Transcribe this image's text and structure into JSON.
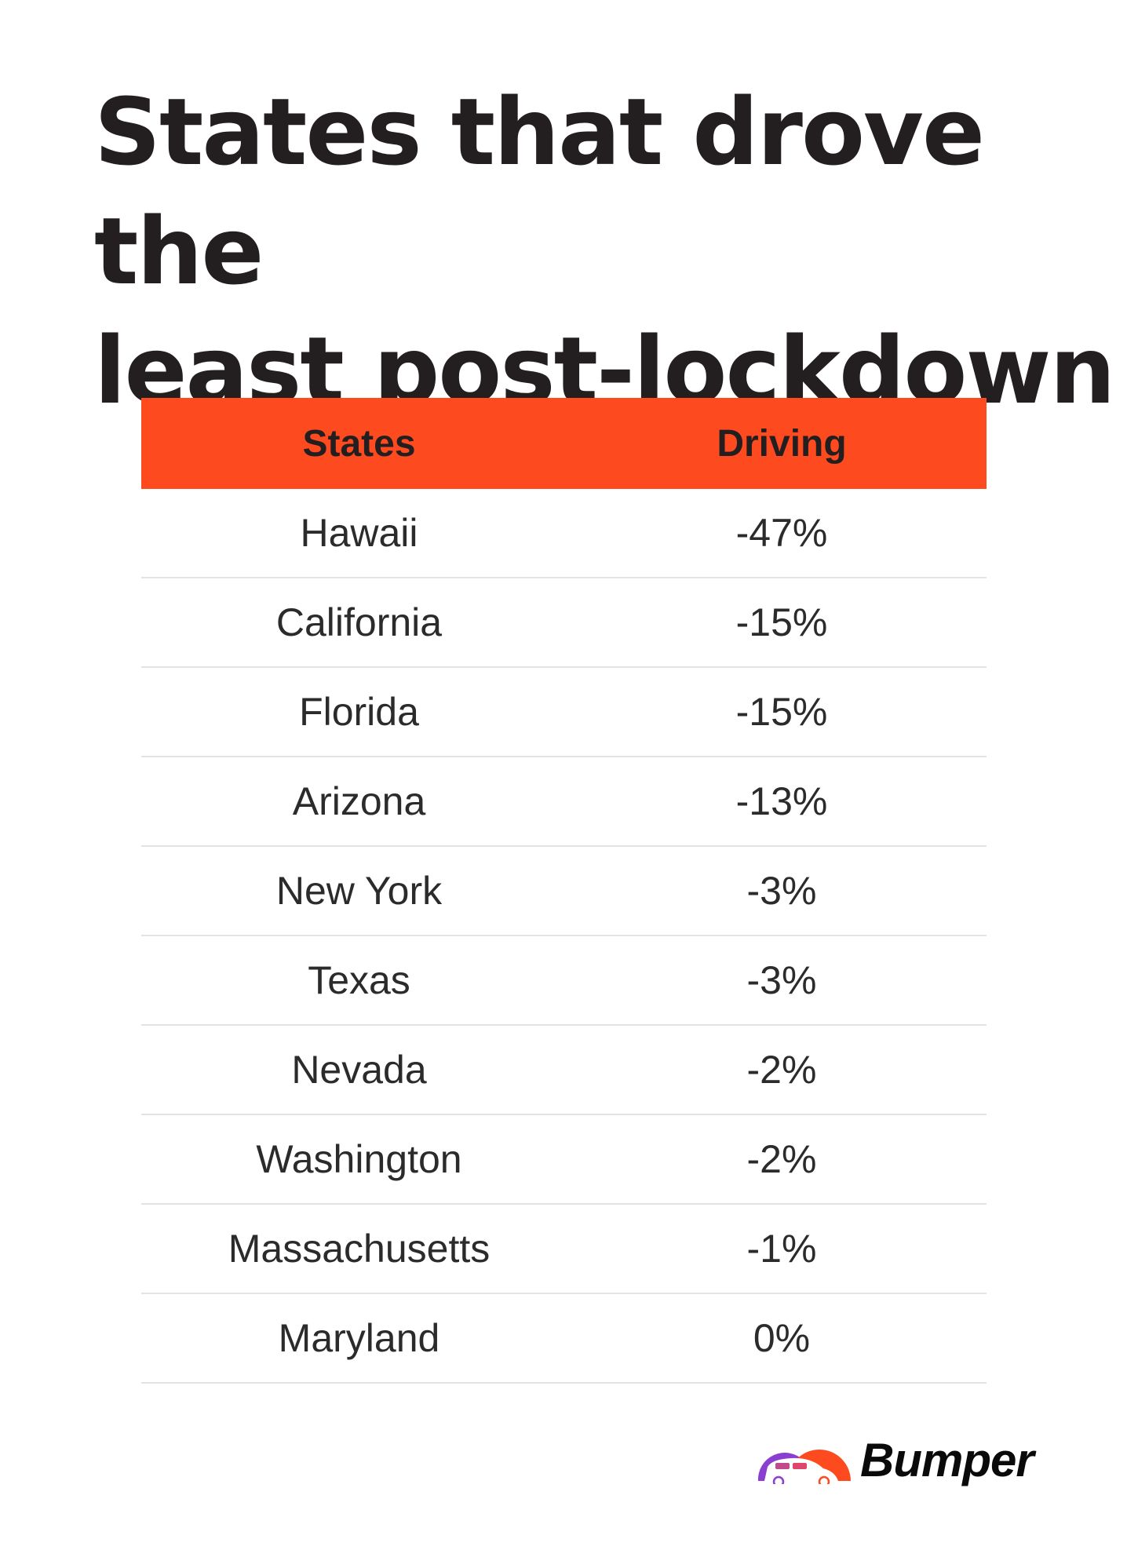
{
  "title_lines": [
    "States that drove the",
    "least post-lockdown"
  ],
  "table": {
    "headers": [
      "States",
      "Driving"
    ],
    "rows": [
      {
        "state": "Hawaii",
        "driving": "-47%"
      },
      {
        "state": "California",
        "driving": "-15%"
      },
      {
        "state": "Florida",
        "driving": "-15%"
      },
      {
        "state": "Arizona",
        "driving": "-13%"
      },
      {
        "state": "New York",
        "driving": "-3%"
      },
      {
        "state": "Texas",
        "driving": "-3%"
      },
      {
        "state": "Nevada",
        "driving": "-2%"
      },
      {
        "state": "Washington",
        "driving": "-2%"
      },
      {
        "state": "Massachusetts",
        "driving": "-1%"
      },
      {
        "state": "Maryland",
        "driving": "0%"
      }
    ]
  },
  "brand": {
    "name": "Bumper",
    "accent": "#fd4a1f",
    "secondary": "#8a3fd1"
  },
  "colors": {
    "header_bg": "#fd4a1f",
    "divider": "#e3e3e3"
  }
}
